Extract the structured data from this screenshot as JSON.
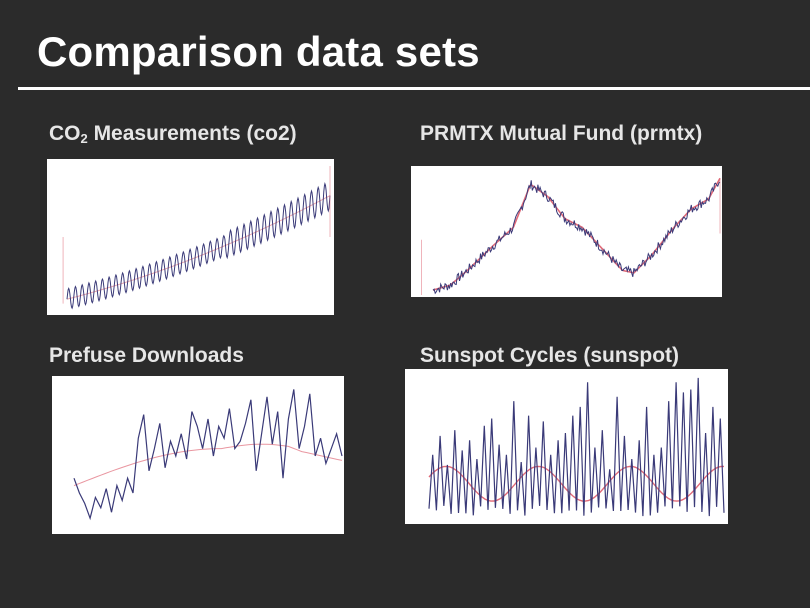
{
  "slide": {
    "title": "Comparison data sets"
  },
  "colors": {
    "background": "#2b2b2b",
    "series_raw": "#3a3a78",
    "series_smooth": "#e06a78"
  },
  "panels": [
    {
      "label_prefix": "CO",
      "label_sub": "2",
      "label_suffix": " Measurements (co2)"
    },
    {
      "label": "PRMTX Mutual Fund (prmtx)"
    },
    {
      "label": "Prefuse Downloads"
    },
    {
      "label": "Sunspot Cycles (sunspot)"
    }
  ],
  "chart_data": [
    {
      "type": "line",
      "title": "CO2 Measurements (co2)",
      "kind": "upward trend with regular seasonal oscillation",
      "x_range": [
        0,
        1
      ],
      "y_range": [
        0,
        1
      ],
      "trend": {
        "start": 0.08,
        "end": 0.78,
        "curvature": 0.35
      },
      "seasonal": {
        "cycles": 39,
        "amplitude": 0.07
      },
      "series": [
        {
          "role": "raw",
          "color": "#3a3a78"
        },
        {
          "role": "smooth",
          "color": "#e06a78"
        }
      ],
      "axes_shown": false
    },
    {
      "type": "line",
      "title": "PRMTX Mutual Fund (prmtx)",
      "kind": "rise, fall, then recovery with noise",
      "x_range": [
        0,
        1
      ],
      "y_range": [
        0,
        1
      ],
      "keypoints": [
        [
          0.0,
          0.04
        ],
        [
          0.06,
          0.08
        ],
        [
          0.12,
          0.2
        ],
        [
          0.2,
          0.38
        ],
        [
          0.28,
          0.55
        ],
        [
          0.34,
          0.9
        ],
        [
          0.4,
          0.8
        ],
        [
          0.46,
          0.62
        ],
        [
          0.52,
          0.55
        ],
        [
          0.58,
          0.4
        ],
        [
          0.66,
          0.2
        ],
        [
          0.7,
          0.18
        ],
        [
          0.76,
          0.32
        ],
        [
          0.84,
          0.55
        ],
        [
          0.9,
          0.7
        ],
        [
          0.96,
          0.78
        ],
        [
          1.0,
          0.95
        ]
      ],
      "series": [
        {
          "role": "raw",
          "color": "#3a3a78"
        },
        {
          "role": "smooth",
          "color": "#e06a78"
        }
      ],
      "axes_shown": false
    },
    {
      "type": "line",
      "title": "Prefuse Downloads",
      "kind": "noisy series with gentle rising smooth",
      "x_range": [
        0,
        1
      ],
      "y_range": [
        0,
        1
      ],
      "values": [
        0.35,
        0.25,
        0.18,
        0.08,
        0.22,
        0.15,
        0.28,
        0.12,
        0.3,
        0.2,
        0.35,
        0.25,
        0.62,
        0.78,
        0.4,
        0.55,
        0.72,
        0.42,
        0.6,
        0.5,
        0.65,
        0.48,
        0.8,
        0.7,
        0.55,
        0.75,
        0.5,
        0.7,
        0.62,
        0.82,
        0.55,
        0.6,
        0.72,
        0.88,
        0.4,
        0.65,
        0.9,
        0.58,
        0.8,
        0.35,
        0.75,
        0.95,
        0.55,
        0.7,
        0.92,
        0.5,
        0.62,
        0.45,
        0.55,
        0.65,
        0.5
      ],
      "smooth": {
        "start": 0.3,
        "mid": 0.55,
        "end": 0.58
      },
      "series": [
        {
          "role": "raw",
          "color": "#3a3a78"
        },
        {
          "role": "smooth",
          "color": "#e06a78"
        }
      ],
      "axes_shown": false
    },
    {
      "type": "line",
      "title": "Sunspot Cycles (sunspot)",
      "kind": "sharp periodic spikes with wavy smooth",
      "x_range": [
        0,
        1
      ],
      "y_range": [
        0,
        1
      ],
      "peaks": [
        0.45,
        0.58,
        0.38,
        0.62,
        0.48,
        0.55,
        0.42,
        0.65,
        0.7,
        0.52,
        0.45,
        0.82,
        0.4,
        0.72,
        0.5,
        0.68,
        0.45,
        0.55,
        0.6,
        0.72,
        0.78,
        0.95,
        0.5,
        0.62,
        0.35,
        0.85,
        0.58,
        0.42,
        0.55,
        0.78,
        0.45,
        0.5,
        0.82,
        0.95,
        0.88,
        0.9,
        0.98,
        0.6,
        0.78,
        0.7
      ],
      "smooth_wave": {
        "base": 0.25,
        "amplitude": 0.12,
        "cycles": 3.2
      },
      "series": [
        {
          "role": "raw",
          "color": "#3a3a78"
        },
        {
          "role": "smooth",
          "color": "#e06a78"
        }
      ],
      "axes_shown": false
    }
  ]
}
